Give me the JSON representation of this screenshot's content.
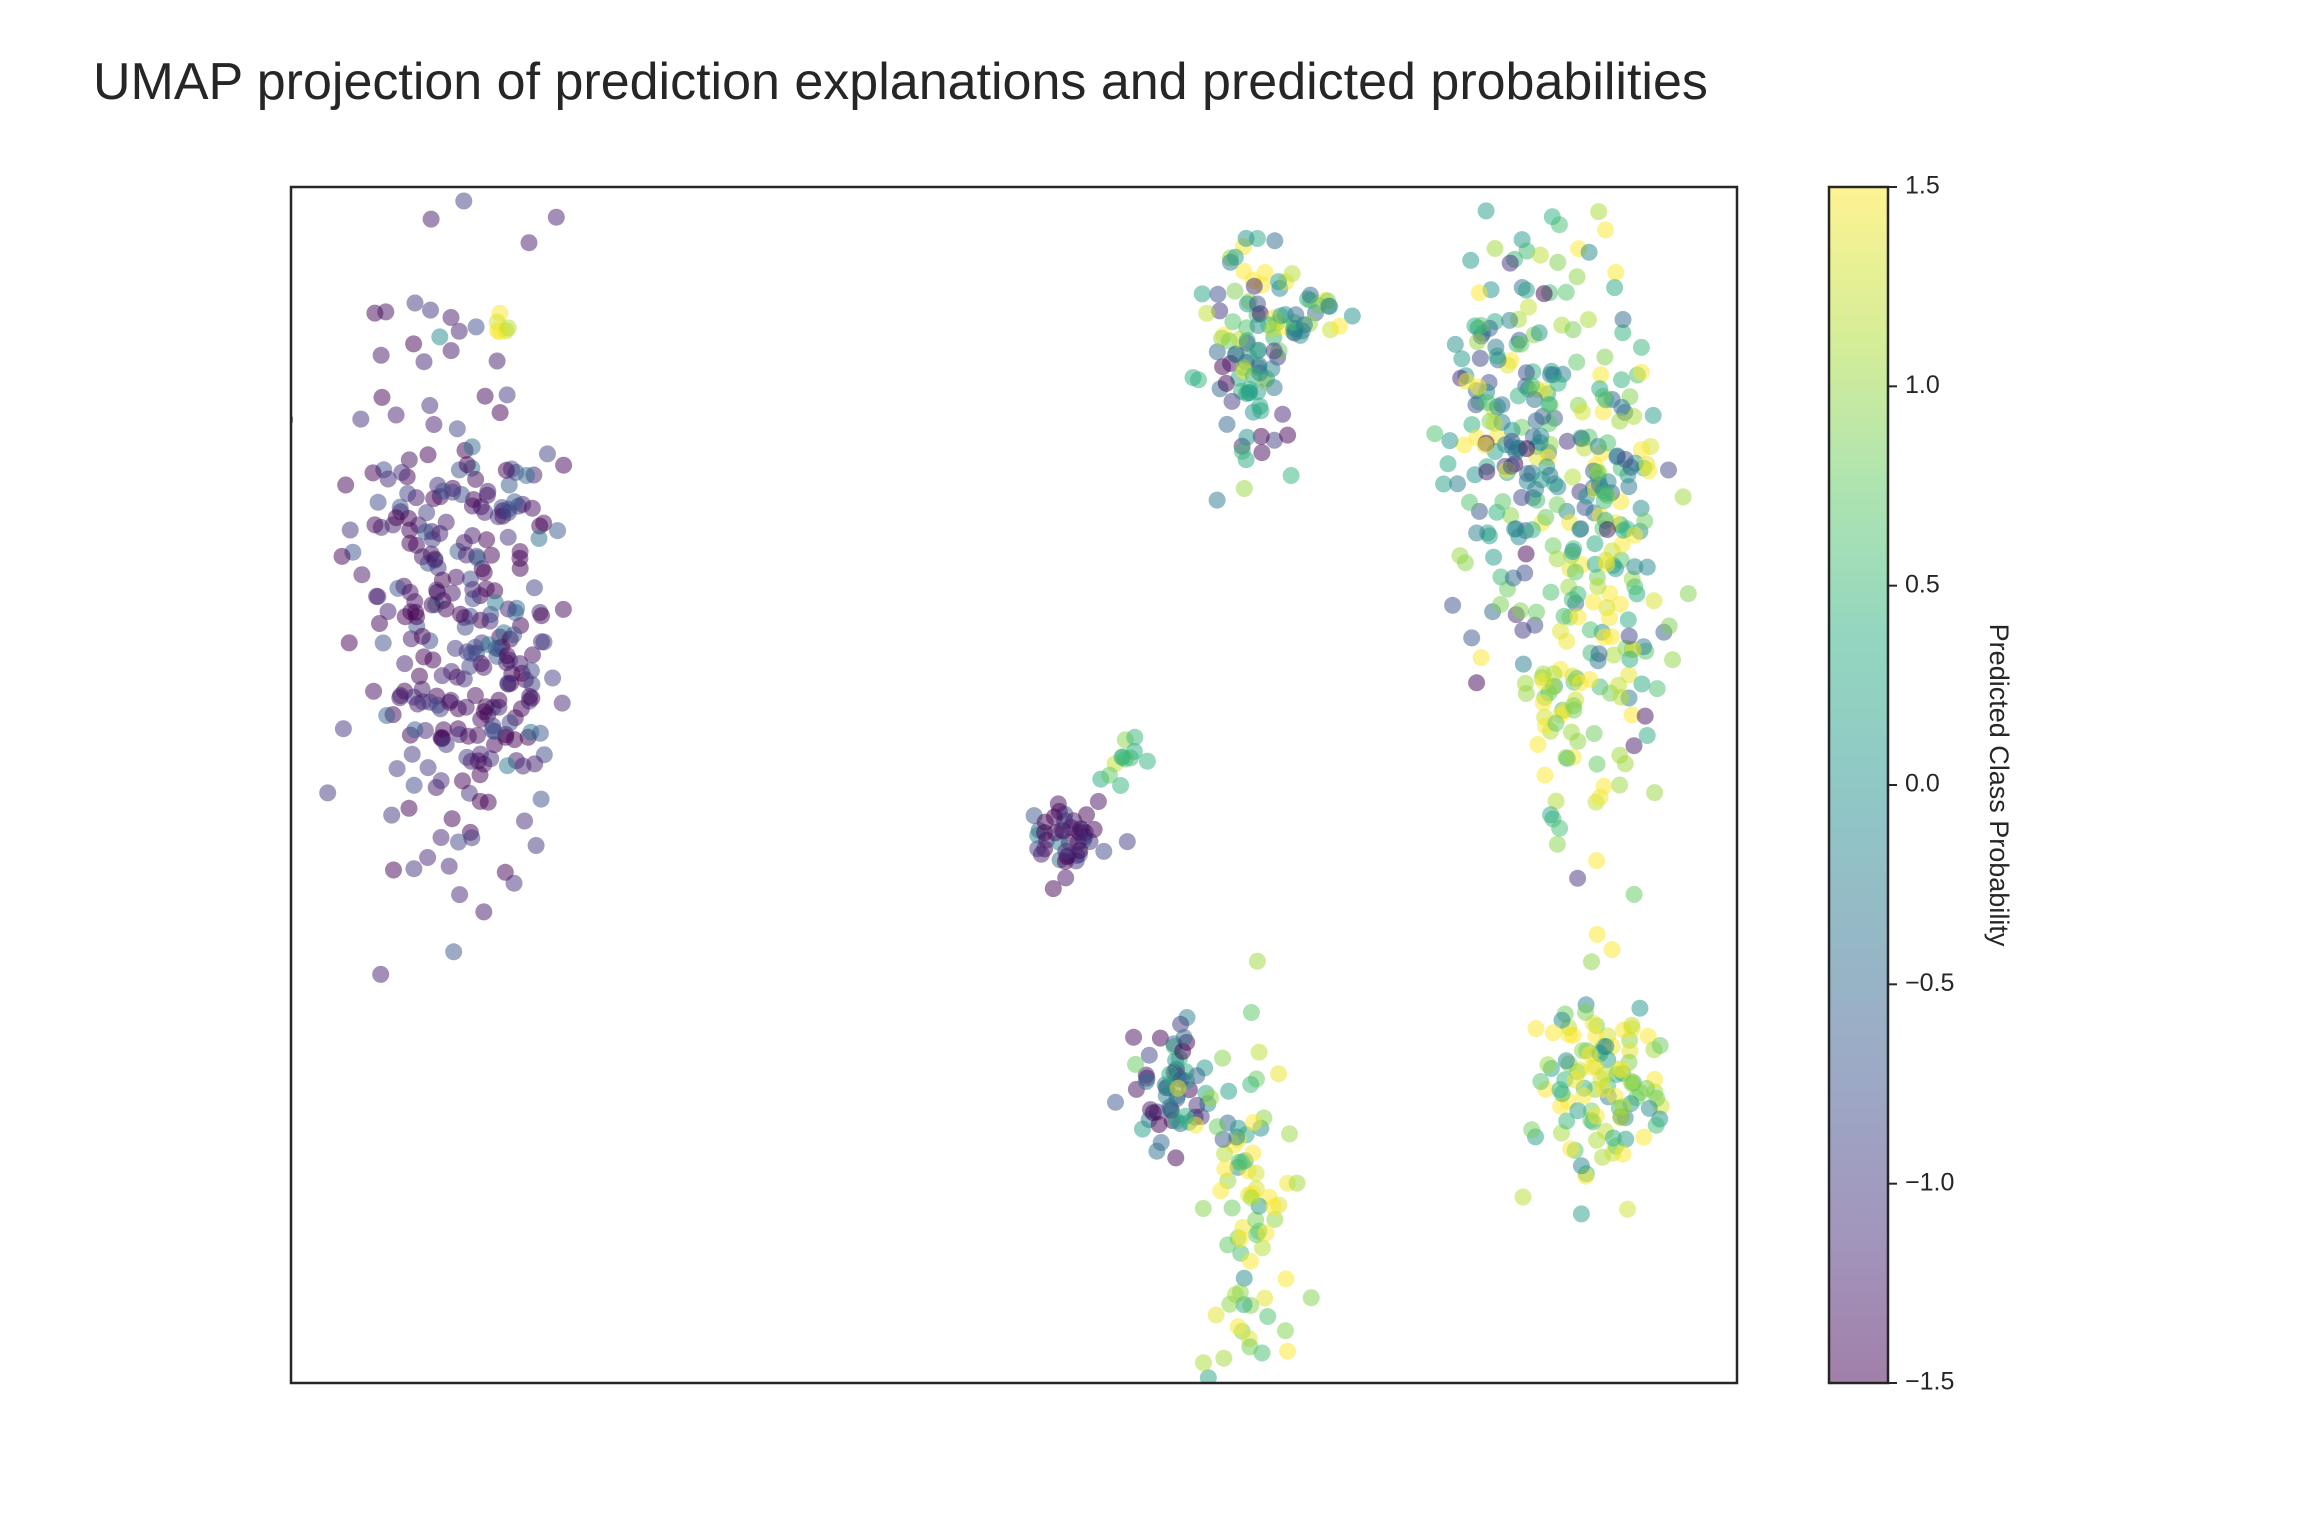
{
  "chart_data": {
    "type": "scatter",
    "title": "UMAP projection of prediction explanations and predicted probabilities",
    "xlabel": "",
    "ylabel": "",
    "xlim": [
      0,
      14
    ],
    "ylim": [
      0,
      12
    ],
    "grid": false,
    "x_ticks": [],
    "y_ticks": [],
    "marker": "circle",
    "alpha": 0.5,
    "colormap": "viridis",
    "colorbar": {
      "label": "Predicted Class Probability",
      "range": [
        -1.5,
        1.5
      ],
      "ticks": [
        1.5,
        1.0,
        0.5,
        0.0,
        -0.5,
        -1.0,
        -1.5
      ],
      "tick_labels": [
        "1.5",
        "1.0",
        "0.5",
        "0.0",
        "−0.5",
        "−1.0",
        "−1.5"
      ]
    },
    "clusters": [
      {
        "cx": 1.5,
        "cy": 7.8,
        "sx": 0.45,
        "sy": 1.3,
        "n": 230,
        "vmean": -1.3,
        "vspread": 0.35,
        "seed": 11
      },
      {
        "cx": 2.05,
        "cy": 7.5,
        "sx": 0.25,
        "sy": 1.0,
        "n": 80,
        "vmean": -1.2,
        "vspread": 0.4,
        "seed": 12
      },
      {
        "cx": 2.05,
        "cy": 10.6,
        "sx": 0.04,
        "sy": 0.06,
        "n": 6,
        "vmean": 1.3,
        "vspread": 0.1,
        "seed": 13
      },
      {
        "cx": 7.5,
        "cy": 5.5,
        "sx": 0.18,
        "sy": 0.2,
        "n": 45,
        "vmean": -1.2,
        "vspread": 0.45,
        "seed": 14
      },
      {
        "cx": 8.05,
        "cy": 6.25,
        "sx": 0.15,
        "sy": 0.15,
        "n": 12,
        "vmean": 0.6,
        "vspread": 0.3,
        "seed": 15
      },
      {
        "cx": 9.3,
        "cy": 10.4,
        "sx": 0.22,
        "sy": 0.6,
        "n": 90,
        "vmean": 0.2,
        "vspread": 1.0,
        "seed": 16
      },
      {
        "cx": 9.8,
        "cy": 10.75,
        "sx": 0.22,
        "sy": 0.2,
        "n": 25,
        "vmean": 0.6,
        "vspread": 0.7,
        "seed": 17
      },
      {
        "cx": 11.8,
        "cy": 9.6,
        "sx": 0.3,
        "sy": 1.0,
        "n": 160,
        "vmean": 0.1,
        "vspread": 0.9,
        "seed": 18
      },
      {
        "cx": 12.75,
        "cy": 8.3,
        "sx": 0.3,
        "sy": 1.3,
        "n": 180,
        "vmean": 0.6,
        "vspread": 0.8,
        "seed": 19
      },
      {
        "cx": 12.25,
        "cy": 6.8,
        "sx": 0.2,
        "sy": 0.5,
        "n": 40,
        "vmean": 1.1,
        "vspread": 0.4,
        "seed": 20
      },
      {
        "cx": 8.55,
        "cy": 2.9,
        "sx": 0.25,
        "sy": 0.3,
        "n": 60,
        "vmean": -0.6,
        "vspread": 0.8,
        "seed": 21
      },
      {
        "cx": 9.25,
        "cy": 1.7,
        "sx": 0.2,
        "sy": 0.9,
        "n": 80,
        "vmean": 1.0,
        "vspread": 0.5,
        "seed": 22
      },
      {
        "cx": 12.65,
        "cy": 3.1,
        "sx": 0.28,
        "sy": 0.55,
        "n": 110,
        "vmean": 0.8,
        "vspread": 0.7,
        "seed": 23
      }
    ]
  }
}
